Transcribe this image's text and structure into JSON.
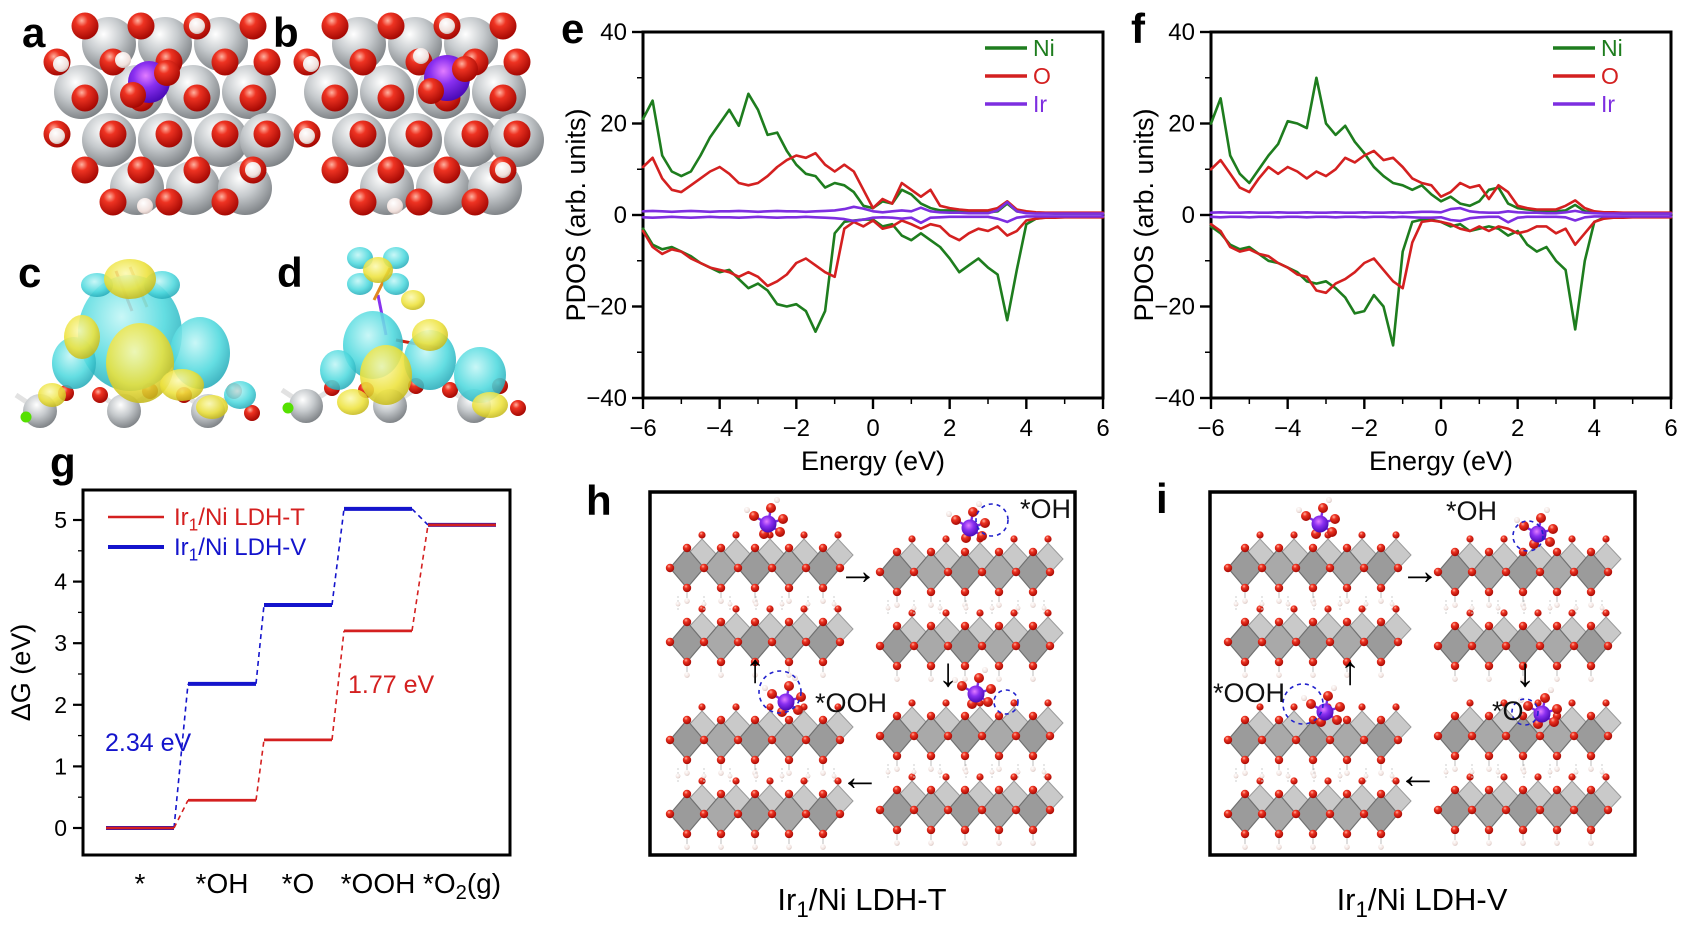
{
  "figure": {
    "panels": {
      "a": {
        "letter": "a"
      },
      "b": {
        "letter": "b"
      },
      "c": {
        "letter": "c"
      },
      "d": {
        "letter": "d"
      },
      "e": {
        "letter": "e"
      },
      "f": {
        "letter": "f"
      },
      "g": {
        "letter": "g"
      },
      "h": {
        "letter": "h",
        "labels": {
          "oh": "*OH",
          "ooh": "*OOH"
        },
        "caption": "Ir_1/Ni LDH-T"
      },
      "i": {
        "letter": "i",
        "labels": {
          "oh": "*OH",
          "o": "*O",
          "ooh": "*OOH"
        },
        "caption": "Ir_1/Ni LDH-V"
      }
    },
    "arrows": {
      "right": "→",
      "left": "←",
      "up": "↑",
      "down": "↓"
    },
    "colors": {
      "oxygen": "#D81E10",
      "nickel": "#AEB2B6",
      "iridium": "#5A14D8",
      "hydrogen": "#F3E7E4",
      "green_atom": "#55E000",
      "iso_positive_yellow": "#E8E040",
      "iso_negative_cyan": "#38CFD8",
      "slab_gray": "#A8A8A8",
      "pdos_ir": "#7D2EE0",
      "pdos_ni": "#1E7D1E",
      "pdos_o": "#D42020",
      "ldh_t_red": "#D42020",
      "ldh_v_blue": "#1414CC",
      "dashed_circle_blue": "#2222CC",
      "frame": "#000000"
    }
  },
  "chart_data": [
    {
      "id": "pdos-e",
      "type": "line",
      "xlabel": "Energy (eV)",
      "ylabel": "PDOS (arb. units)",
      "xlim": [
        -6,
        6
      ],
      "ylim": [
        -40,
        40
      ],
      "xticks": [
        -6,
        -4,
        -2,
        0,
        2,
        4,
        6
      ],
      "xminor": 1,
      "yticks": [
        -40,
        -20,
        0,
        20,
        40
      ],
      "yminor": 10,
      "legend": [
        "Ir",
        "Ni",
        "O"
      ],
      "legend_position": "top-right",
      "grid": false,
      "x_start": -6,
      "x_step": 0.25,
      "series": [
        {
          "name": "Ni",
          "branch": "up",
          "color": "#1E7D1E",
          "y": [
            21,
            25,
            13,
            9.5,
            8.5,
            9.5,
            13,
            17,
            20,
            23,
            19.5,
            26.5,
            23,
            17.5,
            18,
            14,
            11,
            9,
            8.5,
            6,
            7,
            6.5,
            5,
            2,
            1.5,
            3,
            2.5,
            5.5,
            4.5,
            2.5,
            1.5,
            1,
            1,
            0.8,
            0.8,
            0.6,
            0.6,
            0.8,
            2.5,
            0.8,
            0.5,
            0.4,
            0.4,
            0.3,
            0.3,
            0.3,
            0.3,
            0.3,
            0.3
          ]
        },
        {
          "name": "Ni",
          "branch": "down",
          "color": "#1E7D1E",
          "y": [
            -3,
            -6.5,
            -7.5,
            -7,
            -8,
            -9,
            -10.5,
            -11.5,
            -12.5,
            -12,
            -14,
            -16,
            -15,
            -16.5,
            -19.5,
            -20,
            -19.5,
            -21,
            -25.5,
            -21,
            -4,
            -1.5,
            -1.2,
            -1,
            -1,
            -2.5,
            -2,
            -4.5,
            -5.5,
            -4,
            -5.5,
            -7,
            -9.5,
            -12.5,
            -11,
            -9.5,
            -11.5,
            -13,
            -23,
            -12,
            -2,
            -0.8,
            -0.5,
            -0.4,
            -0.4,
            -0.4,
            -0.4,
            -0.4,
            -0.4
          ]
        },
        {
          "name": "O",
          "branch": "up",
          "color": "#D42020",
          "y": [
            10.5,
            12.5,
            8,
            5.5,
            5,
            6.5,
            8,
            9.5,
            10.5,
            9,
            7,
            6.5,
            7,
            8.5,
            10.5,
            12,
            13,
            12.5,
            13.5,
            11,
            9.5,
            11,
            9.5,
            5.5,
            1.5,
            3.5,
            2.5,
            7,
            5.5,
            4,
            5.5,
            2,
            1.5,
            1.2,
            1,
            1,
            1,
            1.5,
            3,
            1.2,
            0.8,
            0.6,
            0.5,
            0.5,
            0.5,
            0.5,
            0.5,
            0.5,
            0.5
          ]
        },
        {
          "name": "O",
          "branch": "down",
          "color": "#D42020",
          "y": [
            -3.5,
            -7,
            -8.5,
            -7.5,
            -8,
            -9.5,
            -10.5,
            -11.5,
            -12,
            -12.5,
            -13.5,
            -12.5,
            -13.5,
            -15.5,
            -14.5,
            -13,
            -10.5,
            -9.5,
            -11,
            -12.5,
            -13.5,
            -3,
            -1.5,
            -2.5,
            -1.2,
            -3,
            -2.5,
            -1.2,
            -2,
            -3,
            -2,
            -2.5,
            -4.5,
            -5.5,
            -4,
            -3,
            -3.5,
            -2.5,
            -4.5,
            -3.5,
            -1.2,
            -0.8,
            -0.6,
            -0.6,
            -0.5,
            -0.5,
            -0.5,
            -0.5,
            -0.5
          ]
        },
        {
          "name": "Ir",
          "branch": "up",
          "color": "#7D2EE0",
          "y": [
            0.8,
            0.9,
            0.8,
            0.7,
            0.8,
            0.9,
            0.8,
            0.7,
            0.8,
            0.8,
            0.9,
            0.8,
            0.7,
            0.8,
            0.9,
            0.8,
            0.8,
            0.7,
            0.8,
            0.9,
            1.0,
            1.3,
            1.8,
            1.4,
            0.8,
            0.6,
            0.8,
            1.0,
            0.8,
            1.6,
            0.8,
            0.6,
            0.5,
            0.5,
            0.4,
            0.4,
            0.4,
            1.0,
            2.8,
            0.8,
            0.4,
            0.3,
            0.3,
            0.3,
            0.3,
            0.3,
            0.3,
            0.3,
            0.3
          ]
        },
        {
          "name": "Ir",
          "branch": "down",
          "color": "#7D2EE0",
          "y": [
            -0.5,
            -0.6,
            -0.5,
            -0.4,
            -0.5,
            -0.6,
            -0.5,
            -0.4,
            -0.5,
            -0.5,
            -0.6,
            -0.5,
            -0.4,
            -0.5,
            -0.6,
            -0.5,
            -0.5,
            -0.4,
            -0.5,
            -0.6,
            -0.7,
            -0.9,
            -1.3,
            -1.0,
            -0.6,
            -0.5,
            -0.6,
            -0.8,
            -0.6,
            -1.7,
            -0.6,
            -0.5,
            -0.4,
            -0.4,
            -0.4,
            -0.4,
            -0.4,
            -0.8,
            -1.5,
            -0.6,
            -0.3,
            -0.3,
            -0.3,
            -0.3,
            -0.3,
            -0.3,
            -0.3,
            -0.3,
            -0.3
          ]
        }
      ]
    },
    {
      "id": "pdos-f",
      "type": "line",
      "xlabel": "Energy (eV)",
      "ylabel": "PDOS (arb. units)",
      "xlim": [
        -6,
        6
      ],
      "ylim": [
        -40,
        40
      ],
      "xticks": [
        -6,
        -4,
        -2,
        0,
        2,
        4,
        6
      ],
      "xminor": 1,
      "yticks": [
        -40,
        -20,
        0,
        20,
        40
      ],
      "yminor": 10,
      "legend": [
        "Ir",
        "Ni",
        "O"
      ],
      "legend_position": "top-right",
      "grid": false,
      "x_start": -6,
      "x_step": 0.25,
      "series": [
        {
          "name": "Ni",
          "branch": "up",
          "color": "#1E7D1E",
          "y": [
            20,
            25.5,
            13,
            9,
            7,
            10,
            13,
            15.5,
            20.5,
            20,
            19,
            30,
            20,
            17.5,
            19.5,
            16,
            13.5,
            10.5,
            8.5,
            7,
            6.5,
            5.5,
            6.5,
            4.5,
            3,
            4,
            2.5,
            2,
            3,
            5.5,
            6,
            2.5,
            1.5,
            1.2,
            1,
            0.8,
            0.8,
            1,
            2.2,
            0.8,
            0.5,
            0.4,
            0.4,
            0.3,
            0.3,
            0.3,
            0.3,
            0.3,
            0.3
          ]
        },
        {
          "name": "Ni",
          "branch": "down",
          "color": "#1E7D1E",
          "y": [
            -2.5,
            -4,
            -6.5,
            -7.5,
            -7,
            -8.5,
            -10,
            -10.5,
            -11.5,
            -12.5,
            -14.5,
            -15,
            -14.5,
            -16,
            -18,
            -21.5,
            -21,
            -17.5,
            -20,
            -28.5,
            -8,
            -1.5,
            -1,
            -1,
            -1.5,
            -2.5,
            -2,
            -3.5,
            -3,
            -2.5,
            -3,
            -4.5,
            -3.5,
            -6.5,
            -8,
            -7,
            -10,
            -12,
            -25,
            -10,
            -1.5,
            -0.6,
            -0.5,
            -0.4,
            -0.4,
            -0.4,
            -0.4,
            -0.4,
            -0.4
          ]
        },
        {
          "name": "O",
          "branch": "up",
          "color": "#D42020",
          "y": [
            10,
            12,
            9,
            6,
            5,
            8,
            10.5,
            9,
            10.5,
            9.5,
            8,
            9.5,
            8.5,
            10,
            12.5,
            11.5,
            13,
            14,
            12,
            12.5,
            10.5,
            8,
            7,
            6.5,
            4,
            5,
            7,
            6,
            6.5,
            3.5,
            6.5,
            5,
            2,
            1.5,
            1.2,
            1.2,
            1.2,
            2,
            3.2,
            1.5,
            0.8,
            0.6,
            0.6,
            0.5,
            0.5,
            0.5,
            0.5,
            0.5,
            0.5
          ]
        },
        {
          "name": "O",
          "branch": "down",
          "color": "#D42020",
          "y": [
            -2,
            -3.5,
            -7,
            -8,
            -7.5,
            -8.5,
            -9,
            -10.5,
            -11.5,
            -13,
            -13.5,
            -16.5,
            -17,
            -15,
            -14,
            -12.5,
            -10.5,
            -9.5,
            -12,
            -14.5,
            -16,
            -6,
            -1.5,
            -1.2,
            -1.5,
            -2,
            -3,
            -3.5,
            -2.5,
            -3.5,
            -2.5,
            -3,
            -4,
            -3.5,
            -2.5,
            -2.5,
            -4,
            -3,
            -6.5,
            -4,
            -1.5,
            -0.8,
            -0.6,
            -0.6,
            -0.5,
            -0.5,
            -0.5,
            -0.5,
            -0.5
          ]
        },
        {
          "name": "Ir",
          "branch": "up",
          "color": "#7D2EE0",
          "y": [
            0.5,
            0.6,
            0.5,
            0.5,
            0.6,
            0.5,
            0.5,
            0.6,
            0.5,
            0.5,
            0.6,
            0.5,
            0.5,
            0.6,
            0.5,
            0.5,
            0.6,
            0.5,
            0.5,
            0.6,
            0.5,
            0.6,
            0.7,
            0.7,
            0.6,
            1.3,
            1.5,
            0.8,
            0.6,
            0.5,
            0.5,
            0.8,
            0.6,
            0.5,
            0.5,
            0.4,
            0.4,
            0.6,
            0.9,
            0.5,
            0.4,
            0.3,
            0.3,
            0.3,
            0.3,
            0.3,
            0.3,
            0.3,
            0.3
          ]
        },
        {
          "name": "Ir",
          "branch": "down",
          "color": "#7D2EE0",
          "y": [
            -0.4,
            -0.5,
            -0.4,
            -0.4,
            -0.5,
            -0.4,
            -0.4,
            -0.5,
            -0.4,
            -0.4,
            -0.5,
            -0.4,
            -0.4,
            -0.5,
            -0.4,
            -0.4,
            -0.5,
            -0.4,
            -0.4,
            -0.5,
            -0.4,
            -0.5,
            -0.6,
            -0.6,
            -0.5,
            -1.1,
            -1.3,
            -0.7,
            -0.5,
            -0.4,
            -0.4,
            -1.6,
            -0.6,
            -0.4,
            -0.4,
            -0.4,
            -0.4,
            -0.5,
            -1.2,
            -0.5,
            -0.3,
            -0.3,
            -0.3,
            -0.3,
            -0.3,
            -0.3,
            -0.3,
            -0.3,
            -0.3
          ]
        }
      ]
    },
    {
      "id": "free-energy-g",
      "type": "step",
      "ylabel": "ΔG (eV)",
      "xlabel": "",
      "categories": [
        "*",
        "*OH",
        "*O",
        "*OOH",
        "*O_2(g)"
      ],
      "yticks": [
        0,
        1,
        2,
        3,
        4,
        5
      ],
      "yminor": 0.5,
      "ylim": [
        -0.55,
        5.45
      ],
      "grid": false,
      "legend_position": "top-left",
      "series": [
        {
          "name": "Ir_1/Ni LDH-T",
          "color": "#D42020",
          "lw": 2.8,
          "values": [
            0,
            0.45,
            1.43,
            3.2,
            4.92
          ]
        },
        {
          "name": "Ir_1/Ni LDH-V",
          "color": "#1414CC",
          "lw": 4.0,
          "values": [
            0,
            2.34,
            3.62,
            5.18,
            4.92
          ]
        }
      ],
      "annotations": [
        {
          "text": "2.34 eV",
          "color": "#1414CC"
        },
        {
          "text": "1.77 eV",
          "color": "#D42020"
        }
      ]
    }
  ]
}
